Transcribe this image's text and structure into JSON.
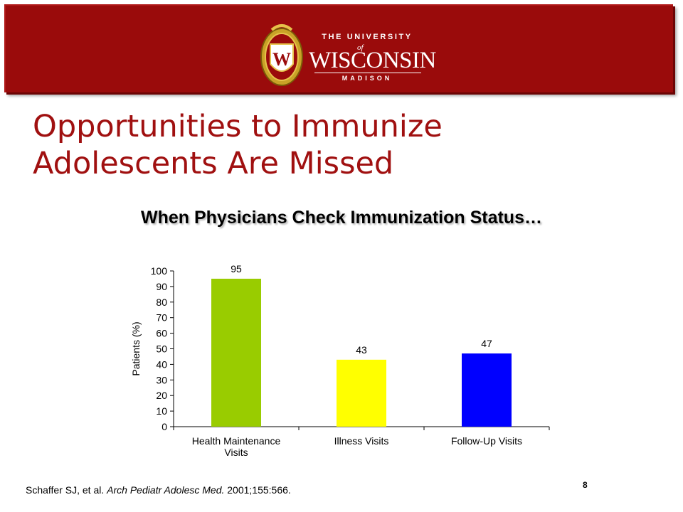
{
  "header": {
    "logo": {
      "crest_letter": "W",
      "line1": "THE UNIVERSITY",
      "of": "of",
      "line2": "WISCONSIN",
      "line3": "MADISON"
    }
  },
  "slide": {
    "title_line1": "Opportunities to Immunize",
    "title_line2": "Adolescents Are Missed",
    "subtitle": "When Physicians Check Immunization Status…"
  },
  "chart_data": {
    "type": "bar",
    "categories": [
      "Health Maintenance Visits",
      "Illness Visits",
      "Follow-Up Visits"
    ],
    "category_lines": [
      [
        "Health Maintenance",
        "Visits"
      ],
      [
        "Illness Visits"
      ],
      [
        "Follow-Up Visits"
      ]
    ],
    "values": [
      95,
      43,
      47
    ],
    "data_labels": [
      "95",
      "43",
      "47"
    ],
    "bar_colors": [
      "#99cc00",
      "#ffff00",
      "#0000ff"
    ],
    "ylabel": "Patients (%)",
    "xlabel": "",
    "ylim": [
      0,
      100
    ],
    "yticks": [
      0,
      10,
      20,
      30,
      40,
      50,
      60,
      70,
      80,
      90,
      100
    ],
    "grid": false,
    "legend": "none"
  },
  "footer": {
    "citation_authors": "Schaffer SJ, et al. ",
    "citation_journal": "Arch Pediatr Adolesc Med.",
    "citation_details": " 2001;155:566.",
    "page_number": "8"
  }
}
